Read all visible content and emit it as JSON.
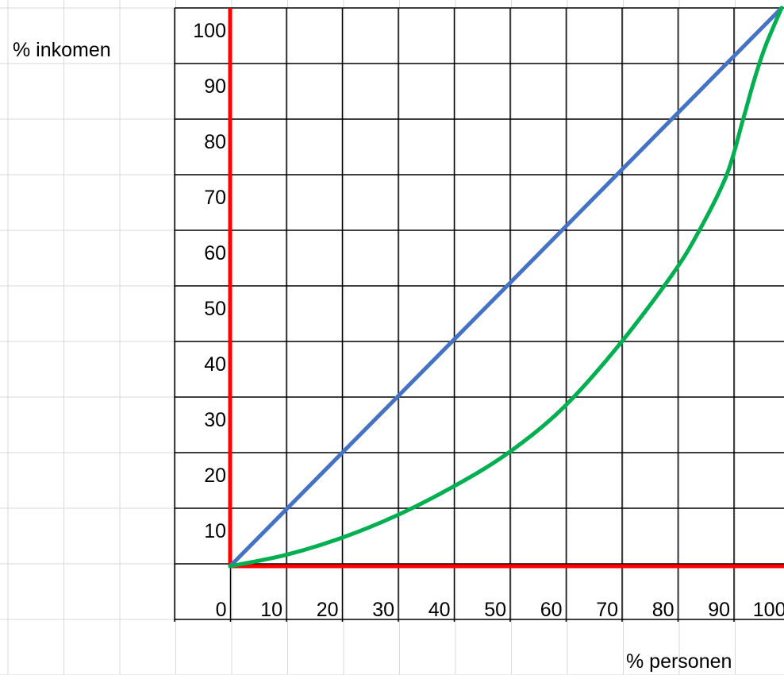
{
  "chart_data": {
    "type": "line",
    "xlabel": "% personen",
    "ylabel": "% inkomen",
    "xlim": [
      0,
      100
    ],
    "ylim": [
      0,
      100
    ],
    "x_ticks": [
      "0",
      "10",
      "20",
      "30",
      "40",
      "50",
      "60",
      "70",
      "80",
      "90",
      "100"
    ],
    "y_ticks": [
      "10",
      "20",
      "30",
      "40",
      "50",
      "60",
      "70",
      "80",
      "90",
      "100"
    ],
    "series": [
      {
        "color": "#4472C4",
        "x": [
          0,
          100
        ],
        "y": [
          0,
          100
        ]
      },
      {
        "color": "#00B050",
        "x": [
          0,
          10,
          20,
          30,
          40,
          50,
          60,
          70,
          80,
          85,
          90,
          93,
          95,
          97,
          100
        ],
        "y": [
          0,
          2,
          5,
          9,
          14,
          20,
          28,
          39,
          52,
          60,
          70,
          80,
          87,
          93,
          100
        ]
      }
    ],
    "axis_color": "#FF0000",
    "grid": true
  }
}
